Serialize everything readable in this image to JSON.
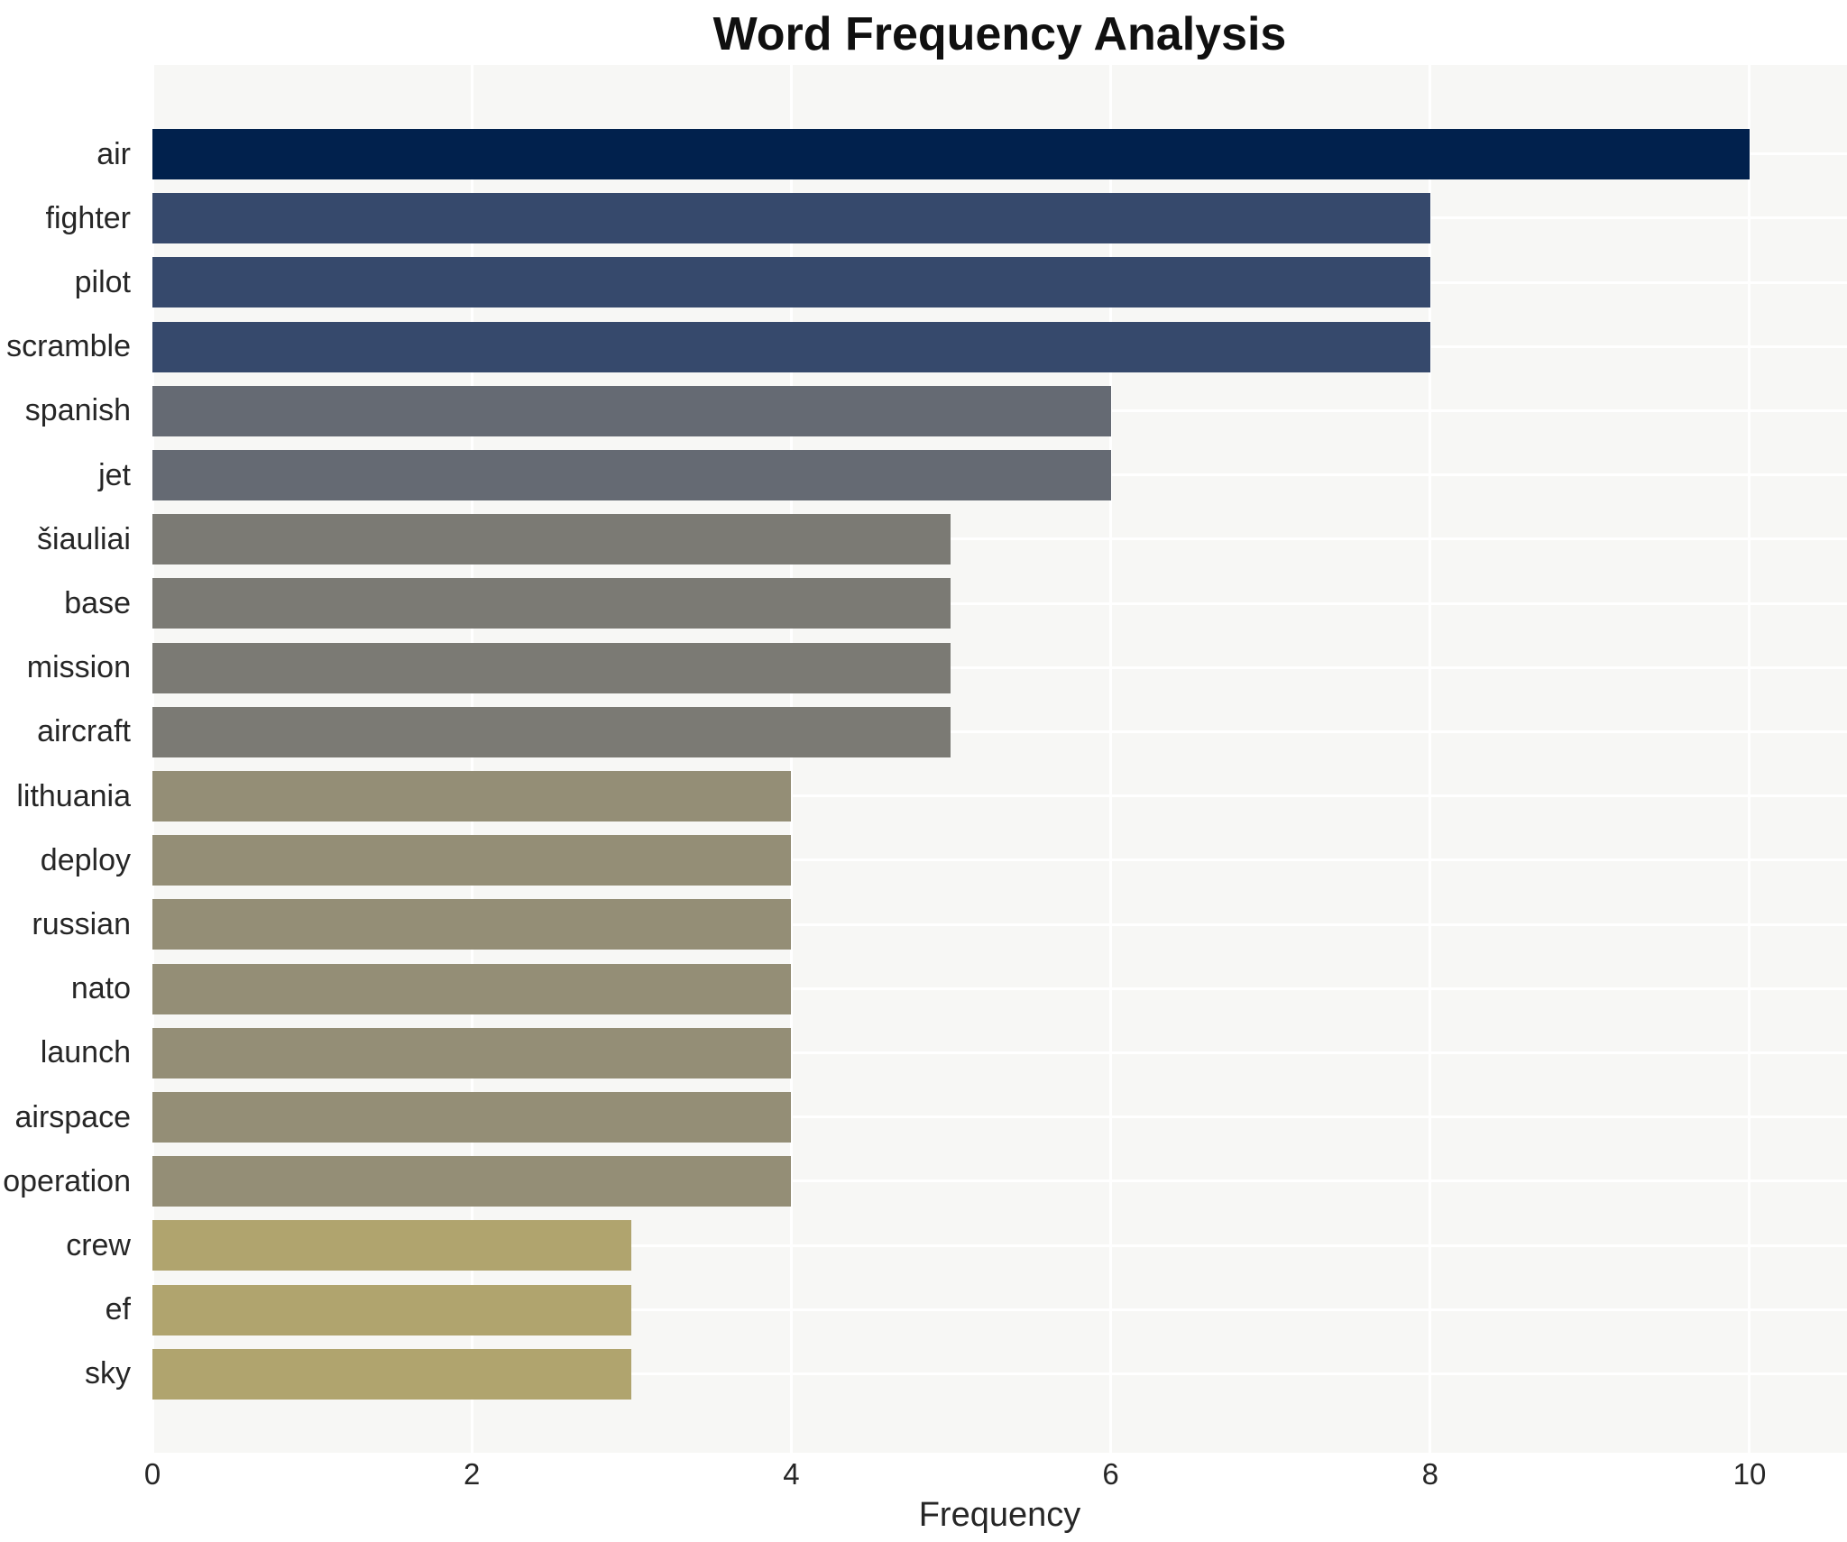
{
  "chart_data": {
    "type": "bar",
    "orientation": "horizontal",
    "title": "Word Frequency Analysis",
    "xlabel": "Frequency",
    "ylabel": "",
    "categories": [
      "air",
      "fighter",
      "pilot",
      "scramble",
      "spanish",
      "jet",
      "šiauliai",
      "base",
      "mission",
      "aircraft",
      "lithuania",
      "deploy",
      "russian",
      "nato",
      "launch",
      "airspace",
      "operation",
      "crew",
      "ef",
      "sky"
    ],
    "values": [
      10,
      8,
      8,
      8,
      6,
      6,
      5,
      5,
      5,
      5,
      4,
      4,
      4,
      4,
      4,
      4,
      4,
      3,
      3,
      3
    ],
    "bar_colors": [
      "#01214d",
      "#36496c",
      "#36496c",
      "#36496c",
      "#656a73",
      "#656a73",
      "#7b7a74",
      "#7b7a74",
      "#7b7a74",
      "#7b7a74",
      "#948e76",
      "#948e76",
      "#948e76",
      "#948e76",
      "#948e76",
      "#948e76",
      "#948e76",
      "#b0a46e",
      "#b0a46e",
      "#b0a46e"
    ],
    "xtick_values": [
      0,
      2,
      4,
      6,
      8,
      10
    ],
    "xtick_labels": [
      "0",
      "2",
      "4",
      "6",
      "8",
      "10"
    ],
    "xlim": [
      0,
      10.61
    ],
    "grid": "both-white-under-bars",
    "legend": "none",
    "colors": {
      "panel_background": "#f7f7f5",
      "gridline": "#ffffff",
      "text": "#262626",
      "title_text": "#101010",
      "page_background": "#ffffff"
    }
  }
}
